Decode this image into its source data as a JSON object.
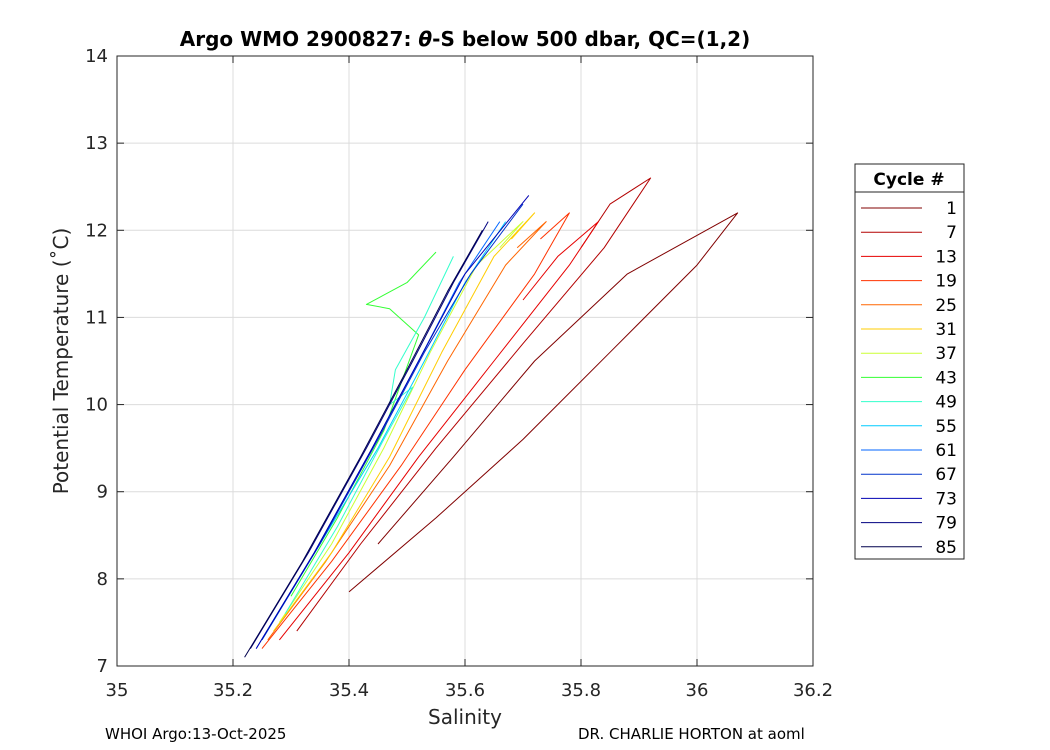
{
  "chart_data": {
    "type": "line",
    "title_prefix": "Argo WMO 2900827: ",
    "title_theta": "θ",
    "title_suffix": "-S below 500 dbar,  QC=(1,2)",
    "xlabel": "Salinity",
    "ylabel": "Potential Temperature (˚C)",
    "xlim": [
      35,
      36.2
    ],
    "ylim": [
      7,
      14
    ],
    "xticks": [
      "35",
      "35.2",
      "35.4",
      "35.6",
      "35.8",
      "36",
      "36.2"
    ],
    "yticks": [
      "7",
      "8",
      "9",
      "10",
      "11",
      "12",
      "13",
      "14"
    ],
    "grid": true,
    "legend_title": "Cycle #",
    "legend_position": "right-outside",
    "series": [
      {
        "name": "1",
        "color": "#800000",
        "x": [
          35.4,
          35.55,
          35.7,
          35.85,
          36.0,
          36.07,
          35.88,
          35.72,
          35.58,
          35.45
        ],
        "y": [
          7.85,
          8.7,
          9.6,
          10.6,
          11.6,
          12.2,
          11.5,
          10.5,
          9.4,
          8.4
        ]
      },
      {
        "name": "7",
        "color": "#b30000",
        "x": [
          35.31,
          35.42,
          35.55,
          35.7,
          35.84,
          35.92,
          35.85,
          35.8
        ],
        "y": [
          7.4,
          8.4,
          9.5,
          10.7,
          11.8,
          12.6,
          12.3,
          11.8
        ]
      },
      {
        "name": "13",
        "color": "#e60000",
        "x": [
          35.28,
          35.4,
          35.52,
          35.65,
          35.78,
          35.83,
          35.76,
          35.7
        ],
        "y": [
          7.3,
          8.3,
          9.4,
          10.5,
          11.6,
          12.1,
          11.7,
          11.2
        ]
      },
      {
        "name": "19",
        "color": "#ff3300",
        "x": [
          35.25,
          35.37,
          35.49,
          35.6,
          35.72,
          35.78,
          35.73
        ],
        "y": [
          7.2,
          8.2,
          9.3,
          10.4,
          11.5,
          12.2,
          11.9
        ]
      },
      {
        "name": "25",
        "color": "#ff6600",
        "x": [
          35.26,
          35.36,
          35.47,
          35.57,
          35.67,
          35.74,
          35.69
        ],
        "y": [
          7.3,
          8.2,
          9.3,
          10.5,
          11.6,
          12.1,
          11.8
        ]
      },
      {
        "name": "31",
        "color": "#ffcc00",
        "x": [
          35.27,
          35.37,
          35.47,
          35.56,
          35.65,
          35.72,
          35.68
        ],
        "y": [
          7.4,
          8.3,
          9.4,
          10.6,
          11.7,
          12.2,
          11.9
        ]
      },
      {
        "name": "37",
        "color": "#ccff33",
        "x": [
          35.28,
          35.37,
          35.46,
          35.54,
          35.62,
          35.7,
          35.66
        ],
        "y": [
          7.5,
          8.4,
          9.5,
          10.6,
          11.6,
          12.1,
          11.8
        ]
      },
      {
        "name": "43",
        "color": "#33ff33",
        "x": [
          35.3,
          35.38,
          35.46,
          35.52,
          35.47,
          35.43,
          35.5,
          35.55
        ],
        "y": [
          7.8,
          8.7,
          9.7,
          10.8,
          11.1,
          11.15,
          11.4,
          11.75
        ]
      },
      {
        "name": "49",
        "color": "#33ffcc",
        "x": [
          35.29,
          35.38,
          35.46,
          35.51,
          35.47,
          35.48,
          35.53,
          35.58
        ],
        "y": [
          7.6,
          8.6,
          9.6,
          10.2,
          10.0,
          10.4,
          11.0,
          11.7
        ]
      },
      {
        "name": "55",
        "color": "#00ccff",
        "x": [
          35.25,
          35.35,
          35.45,
          35.53,
          35.6,
          35.67
        ],
        "y": [
          7.3,
          8.4,
          9.5,
          10.5,
          11.4,
          12.1
        ]
      },
      {
        "name": "61",
        "color": "#0066ff",
        "x": [
          35.24,
          35.34,
          35.44,
          35.52,
          35.59,
          35.66
        ],
        "y": [
          7.2,
          8.3,
          9.5,
          10.5,
          11.4,
          12.1
        ]
      },
      {
        "name": "67",
        "color": "#0033cc",
        "x": [
          35.25,
          35.35,
          35.45,
          35.53,
          35.61,
          35.7
        ],
        "y": [
          7.3,
          8.4,
          9.6,
          10.6,
          11.5,
          12.3
        ]
      },
      {
        "name": "73",
        "color": "#0000b3",
        "x": [
          35.24,
          35.34,
          35.44,
          35.52,
          35.6,
          35.71
        ],
        "y": [
          7.2,
          8.3,
          9.5,
          10.5,
          11.5,
          12.4
        ]
      },
      {
        "name": "79",
        "color": "#000080",
        "x": [
          35.23,
          35.33,
          35.43,
          35.51,
          35.58,
          35.64
        ],
        "y": [
          7.2,
          8.3,
          9.5,
          10.5,
          11.4,
          12.1
        ]
      },
      {
        "name": "85",
        "color": "#00004d",
        "x": [
          35.22,
          35.32,
          35.42,
          35.5,
          35.57,
          35.63
        ],
        "y": [
          7.1,
          8.2,
          9.4,
          10.4,
          11.3,
          12.0
        ]
      }
    ]
  },
  "footer": {
    "left": "WHOI Argo:13-Oct-2025",
    "right": "DR. CHARLIE HORTON at aoml"
  }
}
